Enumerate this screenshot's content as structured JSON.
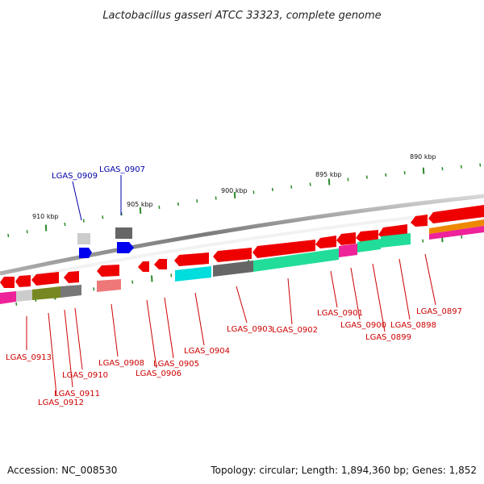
{
  "title": "Lactobacillus gasseri ATCC 33323, complete genome",
  "footer": {
    "accession": "Accession: NC_008530",
    "summary": "Topology: circular; Length: 1,894,360 bp; Genes: 1,852"
  },
  "colors": {
    "backbone": "#8c8c8c",
    "tick": "#2a8a2a",
    "label_red": "#cc0000",
    "label_blue": "#0000aa",
    "gene_red": "#ee0000",
    "gene_blue": "#0000ee",
    "gene_gray": "#777777",
    "gene_lightgray": "#cccccc",
    "gene_green": "#22dd99",
    "gene_cyan": "#00dddd",
    "gene_magenta": "#ee2299",
    "gene_pink": "#ee7777",
    "gene_olive": "#778822",
    "gene_orange": "#ee8800"
  },
  "kbp_markers": [
    {
      "label": "910 kbp"
    },
    {
      "label": "905 kbp"
    },
    {
      "label": "900 kbp"
    },
    {
      "label": "895 kbp"
    },
    {
      "label": "890 kbp"
    }
  ],
  "gene_labels": [
    {
      "name": "LGAS_0913",
      "color": "#cc0000"
    },
    {
      "name": "LGAS_0912",
      "color": "#cc0000"
    },
    {
      "name": "LGAS_0911",
      "color": "#cc0000"
    },
    {
      "name": "LGAS_0910",
      "color": "#cc0000"
    },
    {
      "name": "LGAS_0909",
      "color": "#0000aa"
    },
    {
      "name": "LGAS_0908",
      "color": "#cc0000"
    },
    {
      "name": "LGAS_0907",
      "color": "#0000aa"
    },
    {
      "name": "LGAS_0906",
      "color": "#cc0000"
    },
    {
      "name": "LGAS_0905",
      "color": "#cc0000"
    },
    {
      "name": "LGAS_0904",
      "color": "#cc0000"
    },
    {
      "name": "LGAS_0903",
      "color": "#cc0000"
    },
    {
      "name": "LGAS_0902",
      "color": "#cc0000"
    },
    {
      "name": "LGAS_0901",
      "color": "#cc0000"
    },
    {
      "name": "LGAS_0900",
      "color": "#cc0000"
    },
    {
      "name": "LGAS_0899",
      "color": "#cc0000"
    },
    {
      "name": "LGAS_0898",
      "color": "#cc0000"
    },
    {
      "name": "LGAS_0897",
      "color": "#cc0000"
    }
  ]
}
